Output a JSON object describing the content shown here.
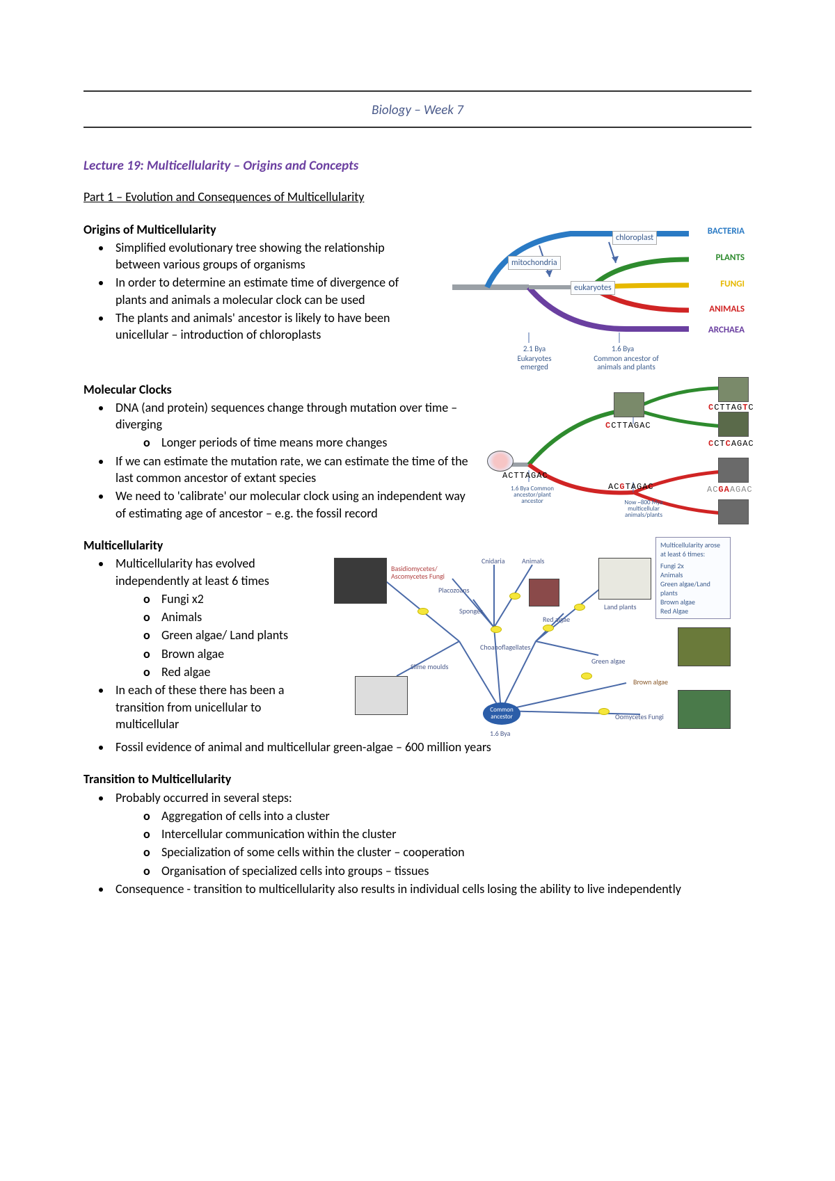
{
  "header": {
    "course": "Biology – Week 7"
  },
  "lecture": {
    "title": "Lecture 19: Multicellularity – Origins and Concepts"
  },
  "part": {
    "title": "Part 1 – Evolution and Consequences of Multicellularity"
  },
  "s1": {
    "heading": "Origins of Multicellularity",
    "b1": "Simplified evolutionary tree showing the relationship between various groups of organisms",
    "b2": "In order to determine an estimate time of divergence of plants and animals a molecular clock can be used",
    "b3": "The plants and animals' ancestor is likely to have been unicellular – introduction of chloroplasts"
  },
  "s2": {
    "heading": "Molecular Clocks",
    "b1": "DNA (and protein) sequences change through mutation over time – diverging",
    "b1s1": "Longer periods of time means more changes",
    "b2": "If we can estimate the mutation rate, we can estimate the time of the last common ancestor of extant species",
    "b3": "We need to 'calibrate' our molecular clock using an independent way of estimating age of ancestor – e.g. the fossil record"
  },
  "s3": {
    "heading": "Multicellularity",
    "b1": "Multicellularity has evolved independently at least 6 times",
    "b1s1": "Fungi x2",
    "b1s2": "Animals",
    "b1s3": "Green algae/ Land plants",
    "b1s4": "Brown algae",
    "b1s5": "Red algae",
    "b2": "In each of these there has been a transition from unicellular to multicellular",
    "b3": "Fossil evidence of animal and multicellular green-algae – 600 million years"
  },
  "s4": {
    "heading": "Transition to Multicellularity",
    "b1": "Probably occurred in several steps:",
    "b1s1": "Aggregation of cells into a cluster",
    "b1s2": "Intercellular communication within the cluster",
    "b1s3": "Specialization of some cells within the cluster – cooperation",
    "b1s4": "Organisation of specialized cells into groups – tissues",
    "b2": "Consequence - transition to multicellularity also results in individual cells losing the ability to live independently"
  },
  "fig1": {
    "labels": {
      "bacteria": "BACTERIA",
      "plants": "PLANTS",
      "fungi": "FUNGI",
      "animals": "ANIMALS",
      "archaea": "ARCHAEA",
      "chloroplast": "chloroplast",
      "mitochondria": "mitochondria",
      "eukaryotes": "eukaryotes",
      "t1": "2.1 Bya",
      "t1sub": "Eukaryotes emerged",
      "t2": "1.6 Bya",
      "t2sub": "Common ancestor of animals and plants"
    },
    "colors": {
      "bacteria": "#2a7ac4",
      "plants": "#2e8b2e",
      "fungi": "#e6b800",
      "animals": "#d02424",
      "archaea": "#6a3fa0",
      "stem": "#9aa0a6"
    }
  },
  "fig2": {
    "seq_root": "ACTTAGAC",
    "seq_a": "CCTTAGAC",
    "seq_a_mut": [
      0
    ],
    "seq_b": "ACGTAGAC",
    "seq_b_mut": [
      2
    ],
    "seq_c": "CCTTAGTC",
    "seq_c_mut": [
      0,
      6
    ],
    "seq_d": "CCTCAGAC",
    "seq_d_mut": [
      0,
      3
    ],
    "seq_e": "ACGAAGAC",
    "seq_e_mut": [
      2,
      3
    ],
    "caption_left": "1.6 Bya Common ancestor/plant ancestor",
    "caption_right": "Now ~800 Mya multicellular animals/plants",
    "colors": {
      "top": "#2e8b2e",
      "bottom": "#d02424",
      "stem": "#9aa0a6"
    }
  },
  "fig3": {
    "labels": {
      "basidio": "Basidiomycetes/ Ascomycetes Fungi",
      "slime": "Slime moulds",
      "placozoans": "Placozoans",
      "cnidaria": "Cnidaria",
      "animals": "Animals",
      "sponges": "Sponges",
      "redalgae": "Red algae",
      "choano": "Choanoflagellates",
      "landplants": "Land plants",
      "greenalgae": "Green algae",
      "brownalgae": "Brown algae",
      "oomycetes": "Oomycetes Fungi",
      "ancestor": "Common ancestor",
      "time": "1.6 Bya"
    },
    "legend": {
      "title": "Multicellularity arose at least 6 times:",
      "l1": "Fungi 2x",
      "l2": "Animals",
      "l3": "Green algae/Land plants",
      "l4": "Brown algae",
      "l5": "Red Algae"
    },
    "colors": {
      "branch": "#4a6aa8",
      "node": "#f5e63b",
      "ancestor": "#2b5da8"
    }
  }
}
